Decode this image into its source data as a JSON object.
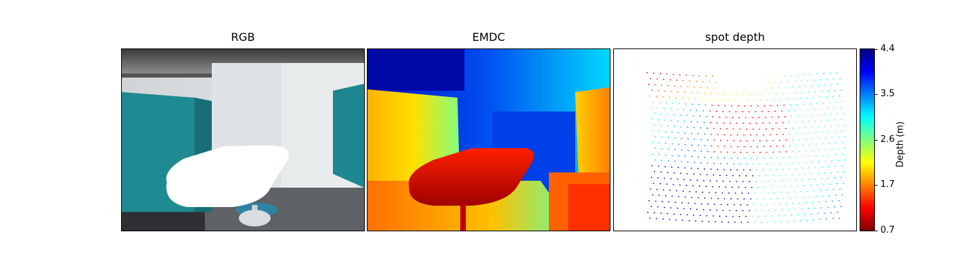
{
  "chart_data": [
    {
      "type": "image",
      "title": "RGB",
      "xticks": false,
      "yticks": false
    },
    {
      "type": "heatmap",
      "title": "EMDC",
      "colormap": "jet",
      "xticks": false,
      "yticks": false
    },
    {
      "type": "scatter",
      "title": "spot depth",
      "colormap": "jet",
      "xticks": false,
      "yticks": false,
      "colorbar": {
        "label": "Depth (m)",
        "ticks": [
          "4.4",
          "3.5",
          "2.6",
          "1.7",
          "0.7"
        ],
        "range": [
          0.7,
          4.4
        ]
      }
    }
  ],
  "colors": {
    "background": "#ffffff",
    "border": "#000000"
  }
}
